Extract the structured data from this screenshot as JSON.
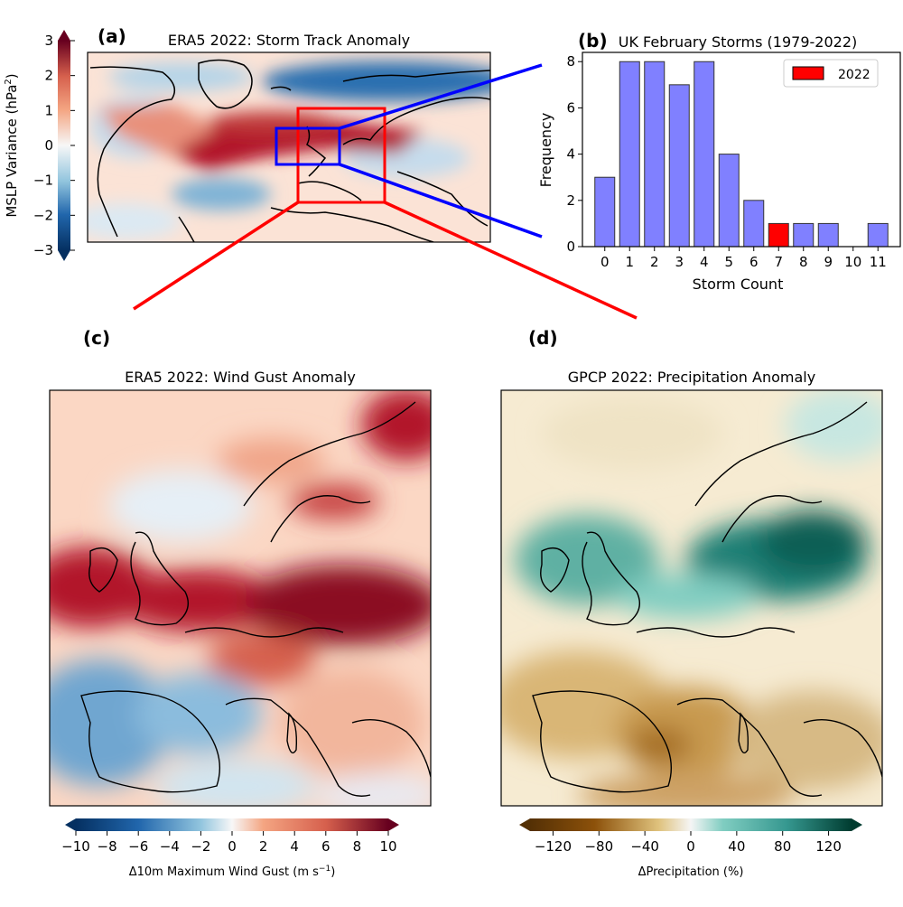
{
  "panel_a": {
    "letter": "(a)",
    "title": "ERA5 2022: Storm Track Anomaly",
    "colorbar": {
      "label": "MSLP Variance (hPa",
      "label_sup": "2",
      "label_end": ")",
      "ticks": [
        "3",
        "2",
        "1",
        "0",
        "−1",
        "−2",
        "−3"
      ],
      "range": [
        -3,
        3
      ]
    }
  },
  "panel_c": {
    "letter": "(c)",
    "title": "ERA5 2022: Wind Gust Anomaly",
    "colorbar": {
      "label": "Δ10m Maximum Wind Gust (m s",
      "label_sup": "−1",
      "label_end": ")",
      "ticks": [
        "−10",
        "−8",
        "−6",
        "−4",
        "−2",
        "0",
        "2",
        "4",
        "6",
        "8",
        "10"
      ],
      "range": [
        -10,
        10
      ]
    }
  },
  "panel_d": {
    "letter": "(d)",
    "title": "GPCP 2022: Precipitation Anomaly",
    "colorbar": {
      "label": "ΔPrecipitation (%)",
      "ticks": [
        "−120",
        "−80",
        "−40",
        "0",
        "40",
        "80",
        "120"
      ],
      "range": [
        -140,
        140
      ]
    }
  },
  "colors": {
    "map_red": "#b2182b",
    "map_blue": "#2166ac",
    "precip_brown": "#8c510a",
    "precip_teal": "#01665e",
    "bar_default": "#8080ff",
    "bar_highlight": "#ff0000",
    "box_red": "#ff0000",
    "box_blue": "#0000ff"
  },
  "chart_data": {
    "type": "bar",
    "letter": "(b)",
    "title": "UK February Storms (1979-2022)",
    "xlabel": "Storm Count",
    "ylabel": "Frequency",
    "categories": [
      "0",
      "1",
      "2",
      "3",
      "4",
      "5",
      "6",
      "7",
      "8",
      "9",
      "10",
      "11"
    ],
    "values": [
      3,
      8,
      8,
      7,
      8,
      4,
      2,
      1,
      1,
      1,
      0,
      1
    ],
    "highlight_category": "7",
    "ylim": [
      0,
      8.4
    ],
    "yticks": [
      "0",
      "2",
      "4",
      "6",
      "8"
    ],
    "legend": {
      "label": "2022",
      "placement": "top-right"
    },
    "grid": false
  }
}
